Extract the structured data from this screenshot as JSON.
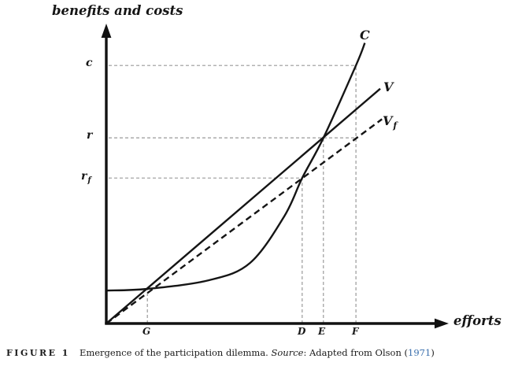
{
  "figure": {
    "caption": {
      "tag": "FIGURE 1",
      "text": "Emergence of the participation dilemma. ",
      "source_label": "Source",
      "source_rest": ": Adapted from Olson (",
      "source_year": "1971",
      "source_close": ")",
      "link_color": "#3a6fad"
    }
  },
  "chart_data": {
    "type": "line",
    "title": "",
    "xlabel": "efforts",
    "ylabel": "benefits and costs",
    "xlim": [
      0,
      10
    ],
    "ylim": [
      0,
      8.6
    ],
    "grid": false,
    "axes_numeric_labels": false,
    "x_ticks": [
      {
        "label": "G",
        "x": 1.2
      },
      {
        "label": "D",
        "x": 5.72
      },
      {
        "label": "E",
        "x": 6.34
      },
      {
        "label": "F",
        "x": 7.29
      }
    ],
    "y_ticks": [
      {
        "label": "c",
        "y": 7.45
      },
      {
        "label": "r",
        "y": 5.36
      },
      {
        "label": "r",
        "sub": "f",
        "y": 4.2
      }
    ],
    "series": [
      {
        "name": "C",
        "style": "solid-convex-curve",
        "points": [
          [
            0,
            0.95
          ],
          [
            1.2,
            1.0
          ],
          [
            3.0,
            1.25
          ],
          [
            4.2,
            1.75
          ],
          [
            5.2,
            3.1
          ],
          [
            5.72,
            4.2
          ],
          [
            6.34,
            5.36
          ],
          [
            7.29,
            7.45
          ],
          [
            7.55,
            8.1
          ]
        ]
      },
      {
        "name": "V",
        "style": "solid-line",
        "points": [
          [
            0,
            0
          ],
          [
            8.0,
            6.78
          ]
        ]
      },
      {
        "name": "V",
        "sub": "f",
        "style": "dashed-line",
        "points": [
          [
            0,
            0
          ],
          [
            8.05,
            5.9
          ]
        ]
      }
    ],
    "guides": {
      "horizontal": [
        {
          "at": 7.45,
          "to_x": 7.29,
          "meaning": "c level to curve C at F"
        },
        {
          "at": 5.36,
          "to_x": 7.29,
          "meaning": "r level through C-V crossing at E"
        },
        {
          "at": 4.2,
          "to_x": 5.72,
          "meaning": "r_f level to C-Vf crossing at D"
        }
      ],
      "vertical": [
        {
          "at": 1.2,
          "to_y": 1.0,
          "meaning": "G: lower C-V crossing"
        },
        {
          "at": 5.72,
          "to_y": 4.2,
          "meaning": "D: C-Vf crossing"
        },
        {
          "at": 6.34,
          "to_y": 5.36,
          "meaning": "E: C-V crossing"
        },
        {
          "at": 7.29,
          "to_y": 7.45,
          "meaning": "F: cost c on curve C"
        }
      ]
    },
    "colors": {
      "curves": "#151515",
      "guides": "#9a9a9a",
      "axis": "#111111"
    }
  }
}
